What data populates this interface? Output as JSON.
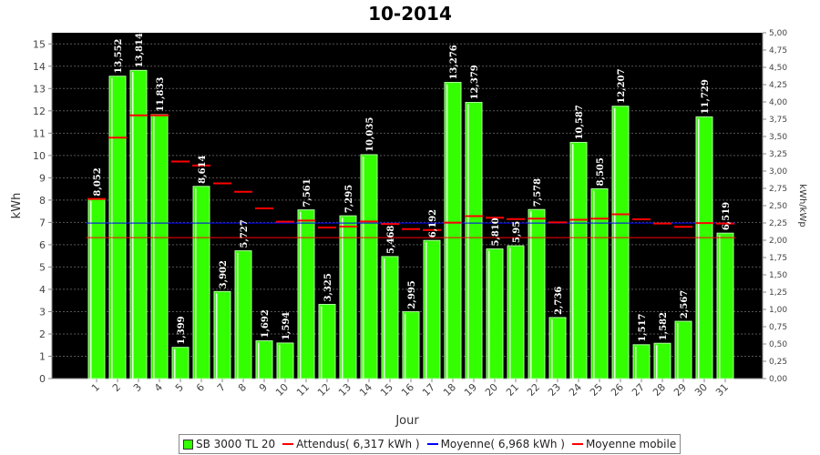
{
  "chart_data": {
    "type": "bar",
    "title": "10-2014",
    "xlabel": "Jour",
    "ylabel": "kWh",
    "y2label": "kWh/kWp",
    "ylim": [
      0,
      15.5
    ],
    "y2lim": [
      0,
      5.0
    ],
    "yticks": [
      "0",
      "1",
      "2",
      "3",
      "4",
      "5",
      "6",
      "7",
      "8",
      "9",
      "10",
      "11",
      "12",
      "13",
      "14",
      "15"
    ],
    "y2ticks": [
      "0,00",
      "0,25",
      "0,50",
      "0,75",
      "1,00",
      "1,25",
      "1,50",
      "1,75",
      "2,00",
      "2,25",
      "2,50",
      "2,75",
      "3,00",
      "3,25",
      "3,50",
      "3,75",
      "4,00",
      "4,25",
      "4,50",
      "4,75",
      "5,00"
    ],
    "categories": [
      "1",
      "2",
      "3",
      "4",
      "5",
      "6",
      "7",
      "8",
      "9",
      "10",
      "11",
      "12",
      "13",
      "14",
      "15",
      "16",
      "17",
      "18",
      "19",
      "20",
      "21",
      "22",
      "23",
      "24",
      "25",
      "26",
      "27",
      "28",
      "29",
      "30",
      "31"
    ],
    "series": [
      {
        "name": "SB 3000 TL 20",
        "color": "#33ff00",
        "values": [
          8.052,
          13.552,
          13.814,
          11.833,
          1.399,
          8.614,
          3.902,
          5.727,
          1.692,
          1.594,
          7.561,
          3.325,
          7.295,
          10.035,
          5.468,
          2.995,
          6.192,
          13.276,
          12.379,
          5.81,
          5.95,
          7.578,
          2.736,
          10.587,
          8.505,
          12.207,
          1.517,
          1.582,
          2.567,
          11.729,
          6.519
        ],
        "labels": [
          "8,052",
          "13,552",
          "13,814",
          "11,833",
          "1,399",
          "8,614",
          "3,902",
          "5,727",
          "1,692",
          "1,594",
          "7,561",
          "3,325",
          "7,295",
          "10,035",
          "5,468",
          "2,995",
          "6,192",
          "13,276",
          "12,379",
          "5,810",
          "5,95",
          "7,578",
          "2,736",
          "10,587",
          "8,505",
          "12,207",
          "1,517",
          "1,582",
          "2,567",
          "11,729",
          "6,519"
        ]
      },
      {
        "name": "Attendus( 6,317 kWh )",
        "color": "#ff0000",
        "value": 6.317
      },
      {
        "name": "Moyenne( 6,968 kWh )",
        "color": "#0000ff",
        "value": 6.968
      },
      {
        "name": "Moyenne mobile",
        "color": "#ff0000",
        "values": [
          8.05,
          10.8,
          11.8,
          11.8,
          9.73,
          9.55,
          8.75,
          8.37,
          7.63,
          7.03,
          7.08,
          6.77,
          6.81,
          7.04,
          6.93,
          6.7,
          6.66,
          6.99,
          7.28,
          7.21,
          7.15,
          7.17,
          7.0,
          7.12,
          7.17,
          7.36,
          7.14,
          6.95,
          6.8,
          6.97,
          6.95
        ]
      }
    ],
    "legend_position": "bottom",
    "grid": true,
    "background": "#000000"
  },
  "legend": {
    "items": [
      "SB 3000 TL 20",
      "Attendus( 6,317 kWh )",
      "Moyenne( 6,968 kWh )",
      "Moyenne mobile"
    ]
  }
}
